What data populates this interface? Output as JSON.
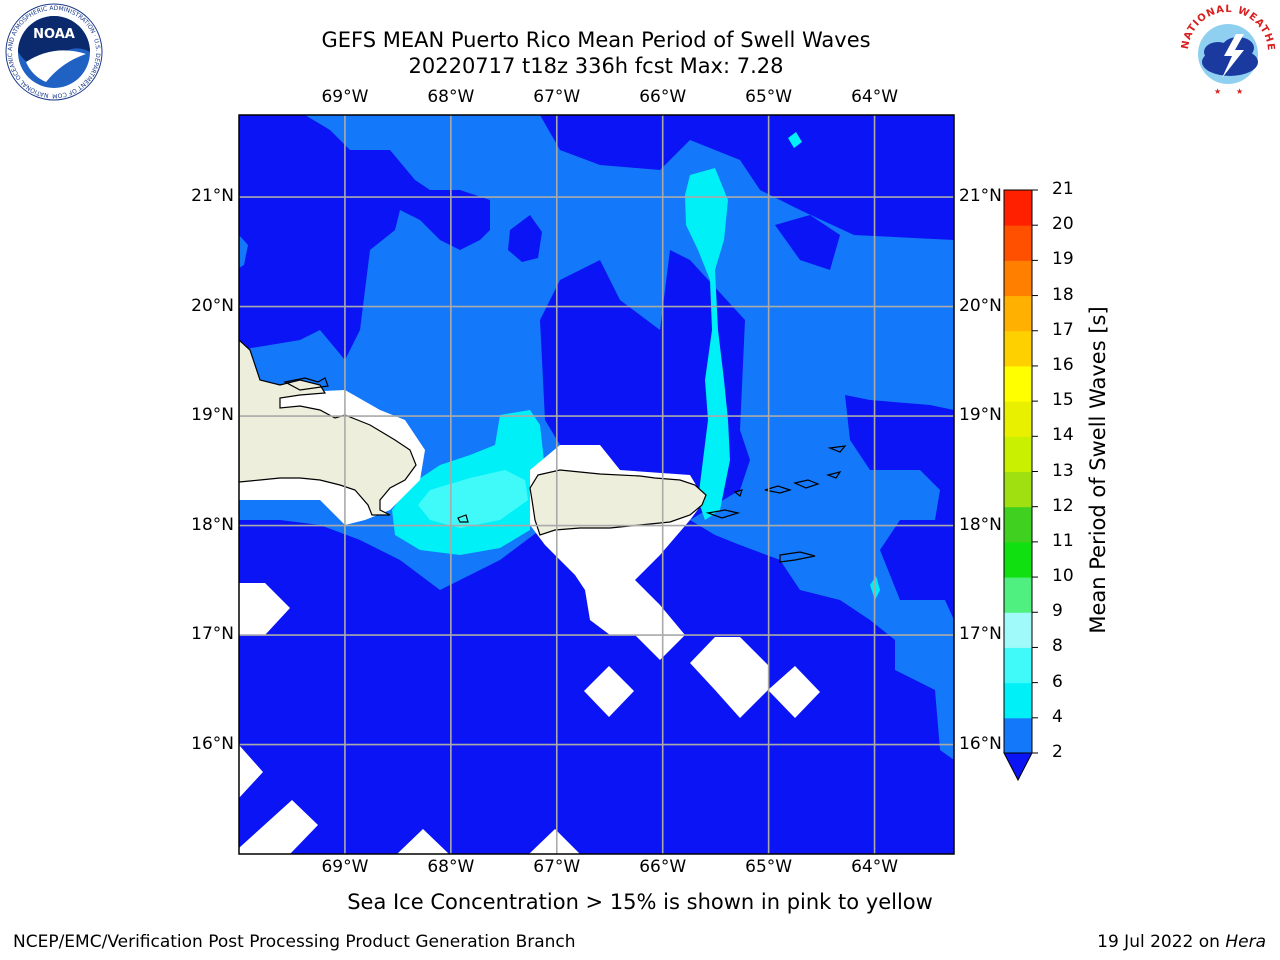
{
  "title_line1": "GEFS MEAN Puerto Rico Mean Period of Swell Waves",
  "title_line2": "20220717 t18z 336h fcst   Max: 7.28",
  "lon_labels": [
    "69°W",
    "68°W",
    "67°W",
    "66°W",
    "65°W",
    "64°W"
  ],
  "lat_labels": [
    "21°N",
    "20°N",
    "19°N",
    "18°N",
    "17°N",
    "16°N"
  ],
  "colorbar": {
    "title": "Mean Period of Swell Waves [s]",
    "ticks": [
      "2",
      "4",
      "6",
      "8",
      "9",
      "10",
      "11",
      "12",
      "13",
      "14",
      "15",
      "16",
      "17",
      "18",
      "19",
      "20",
      "21"
    ],
    "colors": [
      "#0a14f5",
      "#1478fa",
      "#00f0f8",
      "#40fafa",
      "#a0fafa",
      "#50f080",
      "#10e010",
      "#40d020",
      "#a0e010",
      "#c8f000",
      "#e8f000",
      "#ffff00",
      "#ffd000",
      "#ffb000",
      "#ff8000",
      "#ff5000",
      "#ff2000",
      "#ff0000"
    ],
    "extend": "min"
  },
  "map": {
    "lon_range": [
      -70,
      -63.25
    ],
    "lat_range": [
      15,
      21.75
    ],
    "grid": true,
    "background_color": "#0a14f5"
  },
  "subtitle": "Sea Ice Concentration > 15% is shown in pink to yellow",
  "footer_left": "NCEP/EMC/Verification Post Processing Product Generation Branch",
  "footer_date": "19 Jul 2022 on",
  "footer_host": "Hera",
  "logos": {
    "left": {
      "name": "noaa-logo",
      "text": "NOAA",
      "ring_text": "NATIONAL OCEANIC AND ATMOSPHERIC ADMINISTRATION · U.S. DEPARTMENT OF COMMERCE"
    },
    "right": {
      "name": "nws-logo",
      "ring_text": "NATIONAL WEATHER SERVICE"
    }
  }
}
